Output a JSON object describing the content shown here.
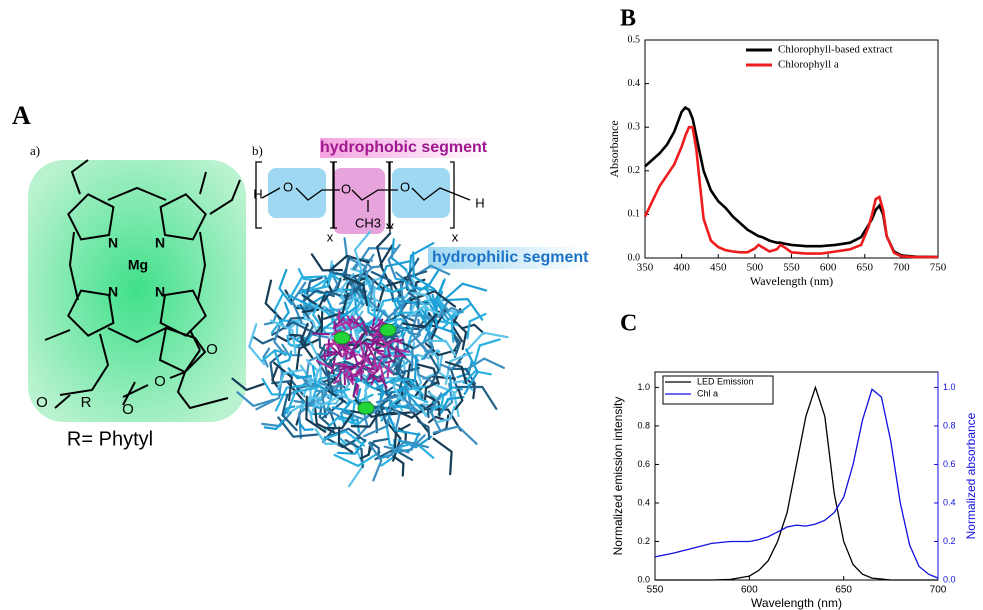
{
  "panel_a": {
    "label": "A",
    "sub_a": "a)",
    "sub_b": "b)",
    "mg": "Mg",
    "n": [
      "N",
      "N",
      "N",
      "N"
    ],
    "o": [
      "O",
      "O",
      "O",
      "O"
    ],
    "r": "R",
    "r_note": "R= Phytyl",
    "polymer": {
      "h": [
        "H",
        "H"
      ],
      "o": [
        "O",
        "O",
        "O"
      ],
      "x": [
        "x",
        "x"
      ],
      "y": "Y",
      "ch3": "CH3",
      "hydrophobic": "hydrophobic segment",
      "hydrophilic": "hydrophilic segment"
    }
  },
  "chart_data": [
    {
      "type": "line",
      "label": "B",
      "xlabel": "Wavelength (nm)",
      "ylabel": "Absorbance",
      "legend": "upper right",
      "legend_box": false,
      "x": [
        350,
        360,
        370,
        380,
        390,
        400,
        405,
        410,
        415,
        420,
        425,
        430,
        440,
        450,
        460,
        470,
        480,
        490,
        500,
        505,
        510,
        520,
        530,
        535,
        540,
        550,
        570,
        590,
        610,
        630,
        645,
        655,
        660,
        665,
        670,
        675,
        680,
        690,
        700,
        720,
        750
      ],
      "xlim": [
        350,
        750
      ],
      "xticks": [
        350,
        400,
        450,
        500,
        550,
        600,
        650,
        700,
        750
      ],
      "ylim": [
        0,
        0.5
      ],
      "yticks": [
        {
          "value": 0,
          "label": "0.0"
        },
        0.1,
        0.2,
        0.3,
        0.4,
        0.5
      ],
      "series": [
        {
          "name": "Chlorophyll-based extract",
          "color": "#000000",
          "values": [
            0.21,
            0.225,
            0.24,
            0.26,
            0.29,
            0.335,
            0.345,
            0.34,
            0.32,
            0.28,
            0.24,
            0.2,
            0.155,
            0.13,
            0.115,
            0.095,
            0.08,
            0.065,
            0.055,
            0.05,
            0.048,
            0.04,
            0.035,
            0.035,
            0.033,
            0.03,
            0.027,
            0.027,
            0.03,
            0.035,
            0.048,
            0.075,
            0.09,
            0.11,
            0.12,
            0.1,
            0.05,
            0.015,
            0.006,
            0.003,
            0.002
          ]
        },
        {
          "name": "Chlorophyll a",
          "color": "#ee1c1c",
          "values": [
            0.095,
            0.13,
            0.165,
            0.19,
            0.215,
            0.255,
            0.28,
            0.3,
            0.3,
            0.25,
            0.17,
            0.09,
            0.04,
            0.025,
            0.018,
            0.015,
            0.013,
            0.013,
            0.022,
            0.03,
            0.025,
            0.015,
            0.02,
            0.03,
            0.025,
            0.013,
            0.01,
            0.01,
            0.015,
            0.02,
            0.03,
            0.07,
            0.1,
            0.135,
            0.14,
            0.11,
            0.05,
            0.012,
            0.004,
            0.002,
            0.002
          ]
        }
      ]
    },
    {
      "type": "line",
      "label": "C",
      "xlabel": "Wavelength (nm)",
      "ylabel": "Normalized emission intensity",
      "y2label": "Normalized absorbance",
      "legend": "upper left",
      "legend_box": true,
      "x": [
        550,
        560,
        570,
        580,
        590,
        600,
        605,
        610,
        615,
        620,
        625,
        630,
        635,
        640,
        645,
        650,
        655,
        660,
        665,
        670,
        675,
        680,
        685,
        690,
        695,
        700
      ],
      "xlim": [
        550,
        700
      ],
      "xticks": [
        550,
        600,
        650,
        700
      ],
      "ylim": [
        0,
        1.08
      ],
      "yticks": [
        {
          "value": 0,
          "label": "0.0"
        },
        0.2,
        0.4,
        0.6,
        0.8,
        {
          "value": 1,
          "label": "1.0"
        }
      ],
      "y2lim": [
        0,
        1.08
      ],
      "y2ticks": [
        {
          "value": 0,
          "label": "0.0"
        },
        0.2,
        0.4,
        0.6,
        0.8,
        {
          "value": 1,
          "label": "1.0"
        }
      ],
      "series": [
        {
          "name": "LED Emission",
          "color": "#000000",
          "values": [
            0,
            0,
            0,
            0,
            0.003,
            0.02,
            0.05,
            0.1,
            0.2,
            0.35,
            0.6,
            0.85,
            1.0,
            0.85,
            0.45,
            0.2,
            0.08,
            0.03,
            0.01,
            0.005,
            0,
            0,
            0,
            0,
            0,
            0
          ]
        },
        {
          "name": "Chl a",
          "color": "#1010e0",
          "axis": "y2",
          "values": [
            0.12,
            0.14,
            0.165,
            0.19,
            0.2,
            0.2,
            0.21,
            0.225,
            0.25,
            0.275,
            0.285,
            0.28,
            0.29,
            0.31,
            0.35,
            0.43,
            0.6,
            0.83,
            0.99,
            0.95,
            0.72,
            0.4,
            0.18,
            0.07,
            0.03,
            0.01
          ]
        }
      ]
    }
  ]
}
